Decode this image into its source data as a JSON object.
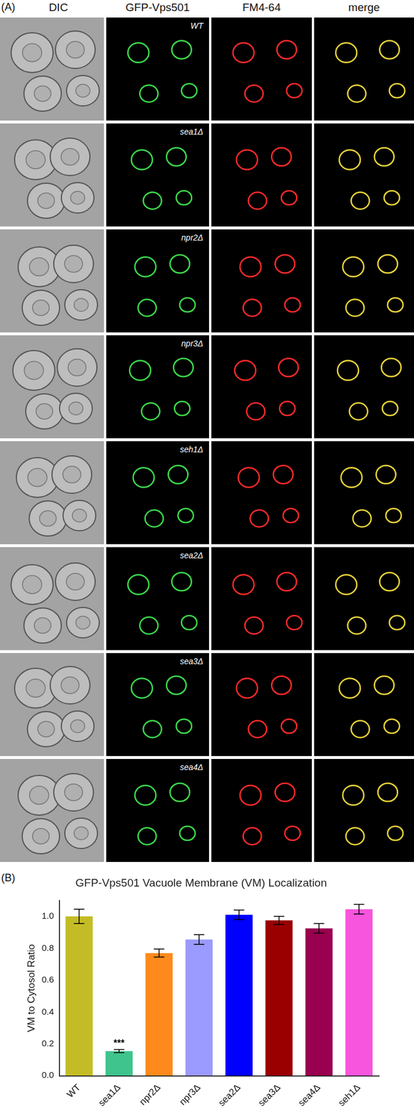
{
  "panel_a": {
    "panel_label": "(A)",
    "columns": [
      "DIC",
      "GFP-Vps501",
      "FM4-64",
      "merge"
    ],
    "rows": [
      "WT",
      "sea1Δ",
      "npr2Δ",
      "npr3Δ",
      "seh1Δ",
      "sea2Δ",
      "sea3Δ",
      "sea4Δ"
    ]
  },
  "chart_data": {
    "type": "bar",
    "panel_label": "(B)",
    "title": "GFP-Vps501 Vacuole Membrane (VM) Localization",
    "y_label": "VM to Cytosol Ratio",
    "categories": [
      "WT",
      "sea1Δ",
      "npr2Δ",
      "npr3Δ",
      "sea2Δ",
      "sea3Δ",
      "sea4Δ",
      "seh1Δ"
    ],
    "values": [
      1.0,
      0.155,
      0.77,
      0.855,
      1.01,
      0.975,
      0.925,
      1.045
    ],
    "errors": [
      0.045,
      0.01,
      0.025,
      0.03,
      0.03,
      0.025,
      0.03,
      0.03
    ],
    "colors": [
      "#c4bc26",
      "#3ec48c",
      "#ff8a1c",
      "#9a9aff",
      "#0000ff",
      "#9a0000",
      "#99004f",
      "#f755dd"
    ],
    "ylim": [
      0,
      1.1
    ],
    "yticks": [
      {
        "value": 0,
        "label": "0.0"
      },
      {
        "value": 0.2,
        "label": "0.2"
      },
      {
        "value": 0.4,
        "label": "0.4"
      },
      {
        "value": 0.6,
        "label": "0.6"
      },
      {
        "value": 0.8,
        "label": "0.8"
      },
      {
        "value": 1.0,
        "label": "1.0"
      }
    ],
    "annotations": [
      {
        "text": "***",
        "category": "sea1Δ"
      }
    ],
    "grid": false
  }
}
